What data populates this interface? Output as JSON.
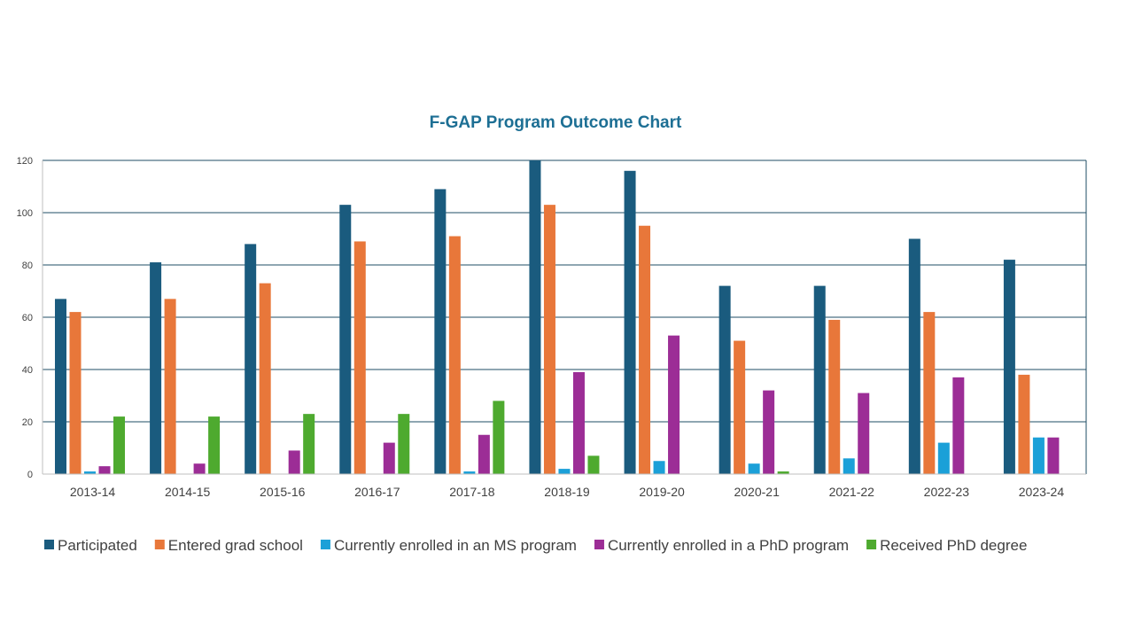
{
  "chart_data": {
    "type": "bar",
    "title": "F-GAP Program Outcome Chart",
    "xlabel": "",
    "ylabel": "",
    "ylim": [
      0,
      120
    ],
    "yticks": [
      0,
      20,
      40,
      60,
      80,
      100,
      120
    ],
    "grid": true,
    "legend_position": "bottom",
    "categories": [
      "2013-14",
      "2014-15",
      "2015-16",
      "2016-17",
      "2017-18",
      "2018-19",
      "2019-20",
      "2020-21",
      "2021-22",
      "2022-23",
      "2023-24"
    ],
    "series": [
      {
        "name": "Participated",
        "color": "#1a5b7e",
        "values": [
          67,
          81,
          88,
          103,
          109,
          120,
          116,
          72,
          72,
          90,
          82
        ]
      },
      {
        "name": "Entered grad school",
        "color": "#e8773a",
        "values": [
          62,
          67,
          73,
          89,
          91,
          103,
          95,
          51,
          59,
          62,
          38
        ]
      },
      {
        "name": "Currently enrolled in an MS program",
        "color": "#1ba0d8",
        "values": [
          1,
          0,
          0,
          0,
          1,
          2,
          5,
          4,
          6,
          12,
          14
        ]
      },
      {
        "name": "Currently enrolled in a PhD program",
        "color": "#9c2d96",
        "values": [
          3,
          4,
          9,
          12,
          15,
          39,
          53,
          32,
          31,
          37,
          14
        ]
      },
      {
        "name": "Received PhD degree",
        "color": "#4eaa2f",
        "values": [
          22,
          22,
          23,
          23,
          28,
          7,
          0,
          1,
          0,
          0,
          0
        ]
      }
    ]
  },
  "colors": {
    "title": "#1d6f94",
    "gridline": "#1f4e64",
    "axis_text": "#404040"
  }
}
